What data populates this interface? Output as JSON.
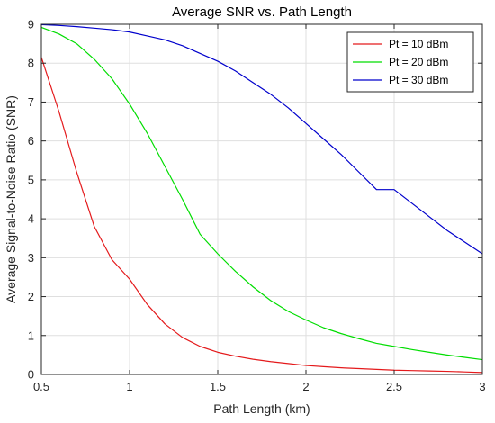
{
  "chart_data": {
    "type": "line",
    "title": "Average SNR vs. Path Length",
    "xlabel": "Path Length (km)",
    "ylabel": "Average Signal-to-Noise Ratio  (SNR)",
    "xlim": [
      0.5,
      3
    ],
    "ylim": [
      0,
      9
    ],
    "xticks": [
      0.5,
      1,
      1.5,
      2,
      2.5,
      3
    ],
    "xtick_labels": [
      "0.5",
      "1",
      "1.5",
      "2",
      "2.5",
      "3"
    ],
    "yticks": [
      0,
      1,
      2,
      3,
      4,
      5,
      6,
      7,
      8,
      9
    ],
    "ytick_labels": [
      "0",
      "1",
      "2",
      "3",
      "4",
      "5",
      "6",
      "7",
      "8",
      "9"
    ],
    "grid": true,
    "legend_position": "top-right",
    "x": [
      0.5,
      0.6,
      0.7,
      0.8,
      0.9,
      1.0,
      1.1,
      1.2,
      1.3,
      1.4,
      1.5,
      1.6,
      1.7,
      1.8,
      1.9,
      2.0,
      2.1,
      2.2,
      2.3,
      2.4,
      2.5,
      2.6,
      2.7,
      2.8,
      2.9,
      3.0
    ],
    "series": [
      {
        "name": "Pt = 10 dBm",
        "color": "#e41a1c",
        "values": [
          8.15,
          6.75,
          5.2,
          3.8,
          2.95,
          2.45,
          1.8,
          1.3,
          0.95,
          0.72,
          0.57,
          0.47,
          0.39,
          0.33,
          0.28,
          0.23,
          0.2,
          0.17,
          0.15,
          0.13,
          0.11,
          0.1,
          0.09,
          0.08,
          0.065,
          0.05
        ]
      },
      {
        "name": "Pt = 20 dBm",
        "color": "#00dd00",
        "values": [
          8.92,
          8.75,
          8.5,
          8.1,
          7.6,
          6.95,
          6.2,
          5.35,
          4.5,
          3.6,
          3.1,
          2.65,
          2.25,
          1.9,
          1.62,
          1.4,
          1.2,
          1.05,
          0.92,
          0.8,
          0.72,
          0.64,
          0.57,
          0.5,
          0.44,
          0.38
        ]
      },
      {
        "name": "Pt = 30 dBm",
        "color": "#0000cc",
        "values": [
          8.99,
          8.97,
          8.94,
          8.9,
          8.86,
          8.8,
          8.7,
          8.6,
          8.45,
          8.25,
          8.05,
          7.8,
          7.5,
          7.2,
          6.85,
          6.45,
          6.05,
          5.65,
          5.2,
          4.75,
          4.75,
          4.4,
          4.05,
          3.7,
          3.4,
          3.1
        ]
      }
    ]
  }
}
